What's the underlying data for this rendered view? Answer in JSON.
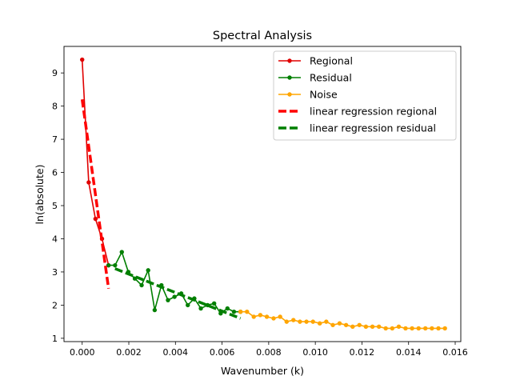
{
  "chart_data": {
    "type": "line",
    "title": "Spectral Analysis",
    "xlabel": "Wavenumber (k)",
    "ylabel": "ln(absolute)",
    "xlim": [
      -0.00078,
      0.01624
    ],
    "ylim": [
      0.9,
      9.8
    ],
    "xticks": [
      "0.000",
      "0.002",
      "0.004",
      "0.006",
      "0.008",
      "0.010",
      "0.012",
      "0.014",
      "0.016"
    ],
    "xtick_values": [
      0.0,
      0.002,
      0.004,
      0.006,
      0.008,
      0.01,
      0.012,
      0.014,
      0.016
    ],
    "yticks": [
      "1",
      "2",
      "3",
      "4",
      "5",
      "6",
      "7",
      "8",
      "9"
    ],
    "ytick_values": [
      1,
      2,
      3,
      4,
      5,
      6,
      7,
      8,
      9
    ],
    "legend_position": "top-right",
    "grid": false,
    "series": [
      {
        "name": "Regional",
        "color": "#e00000",
        "style": "line-marker",
        "x": [
          0.0,
          0.00028,
          0.00057,
          0.00085,
          0.00113
        ],
        "y": [
          9.4,
          5.7,
          4.6,
          4.0,
          3.2
        ]
      },
      {
        "name": "Residual",
        "color": "#007f00",
        "style": "line-marker",
        "x": [
          0.00113,
          0.00141,
          0.0017,
          0.00198,
          0.00226,
          0.00255,
          0.00283,
          0.00311,
          0.0034,
          0.00368,
          0.00396,
          0.00425,
          0.00453,
          0.00481,
          0.00509,
          0.00538,
          0.00566,
          0.00594,
          0.00623,
          0.00651,
          0.00679
        ],
        "y": [
          3.2,
          3.2,
          3.6,
          3.0,
          2.8,
          2.6,
          3.05,
          1.85,
          2.6,
          2.15,
          2.25,
          2.35,
          2.0,
          2.2,
          1.9,
          2.0,
          2.05,
          1.75,
          1.9,
          1.8,
          1.8
        ]
      },
      {
        "name": "Noise",
        "color": "#ffa500",
        "style": "line-marker",
        "x": [
          0.00679,
          0.00707,
          0.00736,
          0.00764,
          0.00792,
          0.00821,
          0.00849,
          0.00877,
          0.00906,
          0.00934,
          0.00962,
          0.0099,
          0.01019,
          0.01047,
          0.01075,
          0.01104,
          0.01132,
          0.0116,
          0.01189,
          0.01217,
          0.01245,
          0.01273,
          0.01302,
          0.0133,
          0.01358,
          0.01387,
          0.01415,
          0.01443,
          0.01472,
          0.015,
          0.01528,
          0.01556
        ],
        "y": [
          1.8,
          1.8,
          1.65,
          1.7,
          1.65,
          1.6,
          1.65,
          1.5,
          1.55,
          1.5,
          1.5,
          1.5,
          1.45,
          1.5,
          1.4,
          1.45,
          1.4,
          1.35,
          1.4,
          1.35,
          1.35,
          1.35,
          1.3,
          1.3,
          1.35,
          1.3,
          1.3,
          1.3,
          1.3,
          1.3,
          1.3,
          1.3
        ]
      },
      {
        "name": "linear regression regional",
        "color": "#ff0000",
        "style": "dashed-thick",
        "x": [
          0.0,
          0.00113
        ],
        "y": [
          8.2,
          2.5
        ]
      },
      {
        "name": "linear regression residual",
        "color": "#007f00",
        "style": "dashed-thick",
        "x": [
          0.00141,
          0.00679
        ],
        "y": [
          3.1,
          1.6
        ]
      }
    ]
  }
}
